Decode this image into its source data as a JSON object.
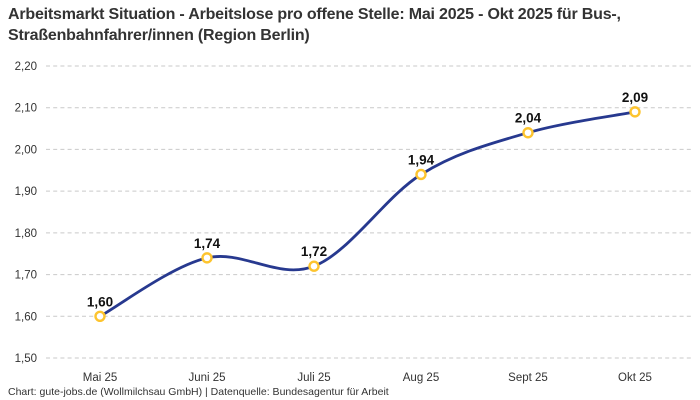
{
  "header": {
    "title": "Arbeitsmarkt Situation - Arbeitslose pro offene Stelle: Mai 2025 - Okt 2025 für Bus-, Straßenbahnfahrer/innen (Region Berlin)"
  },
  "footer": {
    "credit": "Chart: gute-jobs.de (Wollmilchsau GmbH) | Datenquelle: Bundesagentur für Arbeit"
  },
  "chart_data": {
    "type": "line",
    "title": "Arbeitsmarkt Situation - Arbeitslose pro offene Stelle: Mai 2025 - Okt 2025 für Bus-, Straßenbahnfahrer/innen (Region Berlin)",
    "categories": [
      "Mai 25",
      "Juni 25",
      "Juli 25",
      "Aug 25",
      "Sept 25",
      "Okt 25"
    ],
    "values": [
      1.6,
      1.74,
      1.72,
      1.94,
      2.04,
      2.09
    ],
    "value_labels": [
      "1,60",
      "1,74",
      "1,72",
      "1,94",
      "2,04",
      "2,09"
    ],
    "series_name": "Arbeitslose pro offene Stelle",
    "xlabel": "",
    "ylabel": "",
    "ylim": [
      1.5,
      2.2
    ],
    "ytick_step": 0.1,
    "ytick_labels": [
      "2,20",
      "2,10",
      "2,00",
      "1,90",
      "1,80",
      "1,70",
      "1,60",
      "1,50"
    ],
    "grid": "horizontal-dashed",
    "legend": "none",
    "line_color": "#27398f",
    "marker_ring_color": "#fdc42e",
    "marker_fill_color": "#ffffff",
    "grid_color": "#c9c9c9",
    "text_color": "#333333",
    "value_label_color": "#111111"
  }
}
